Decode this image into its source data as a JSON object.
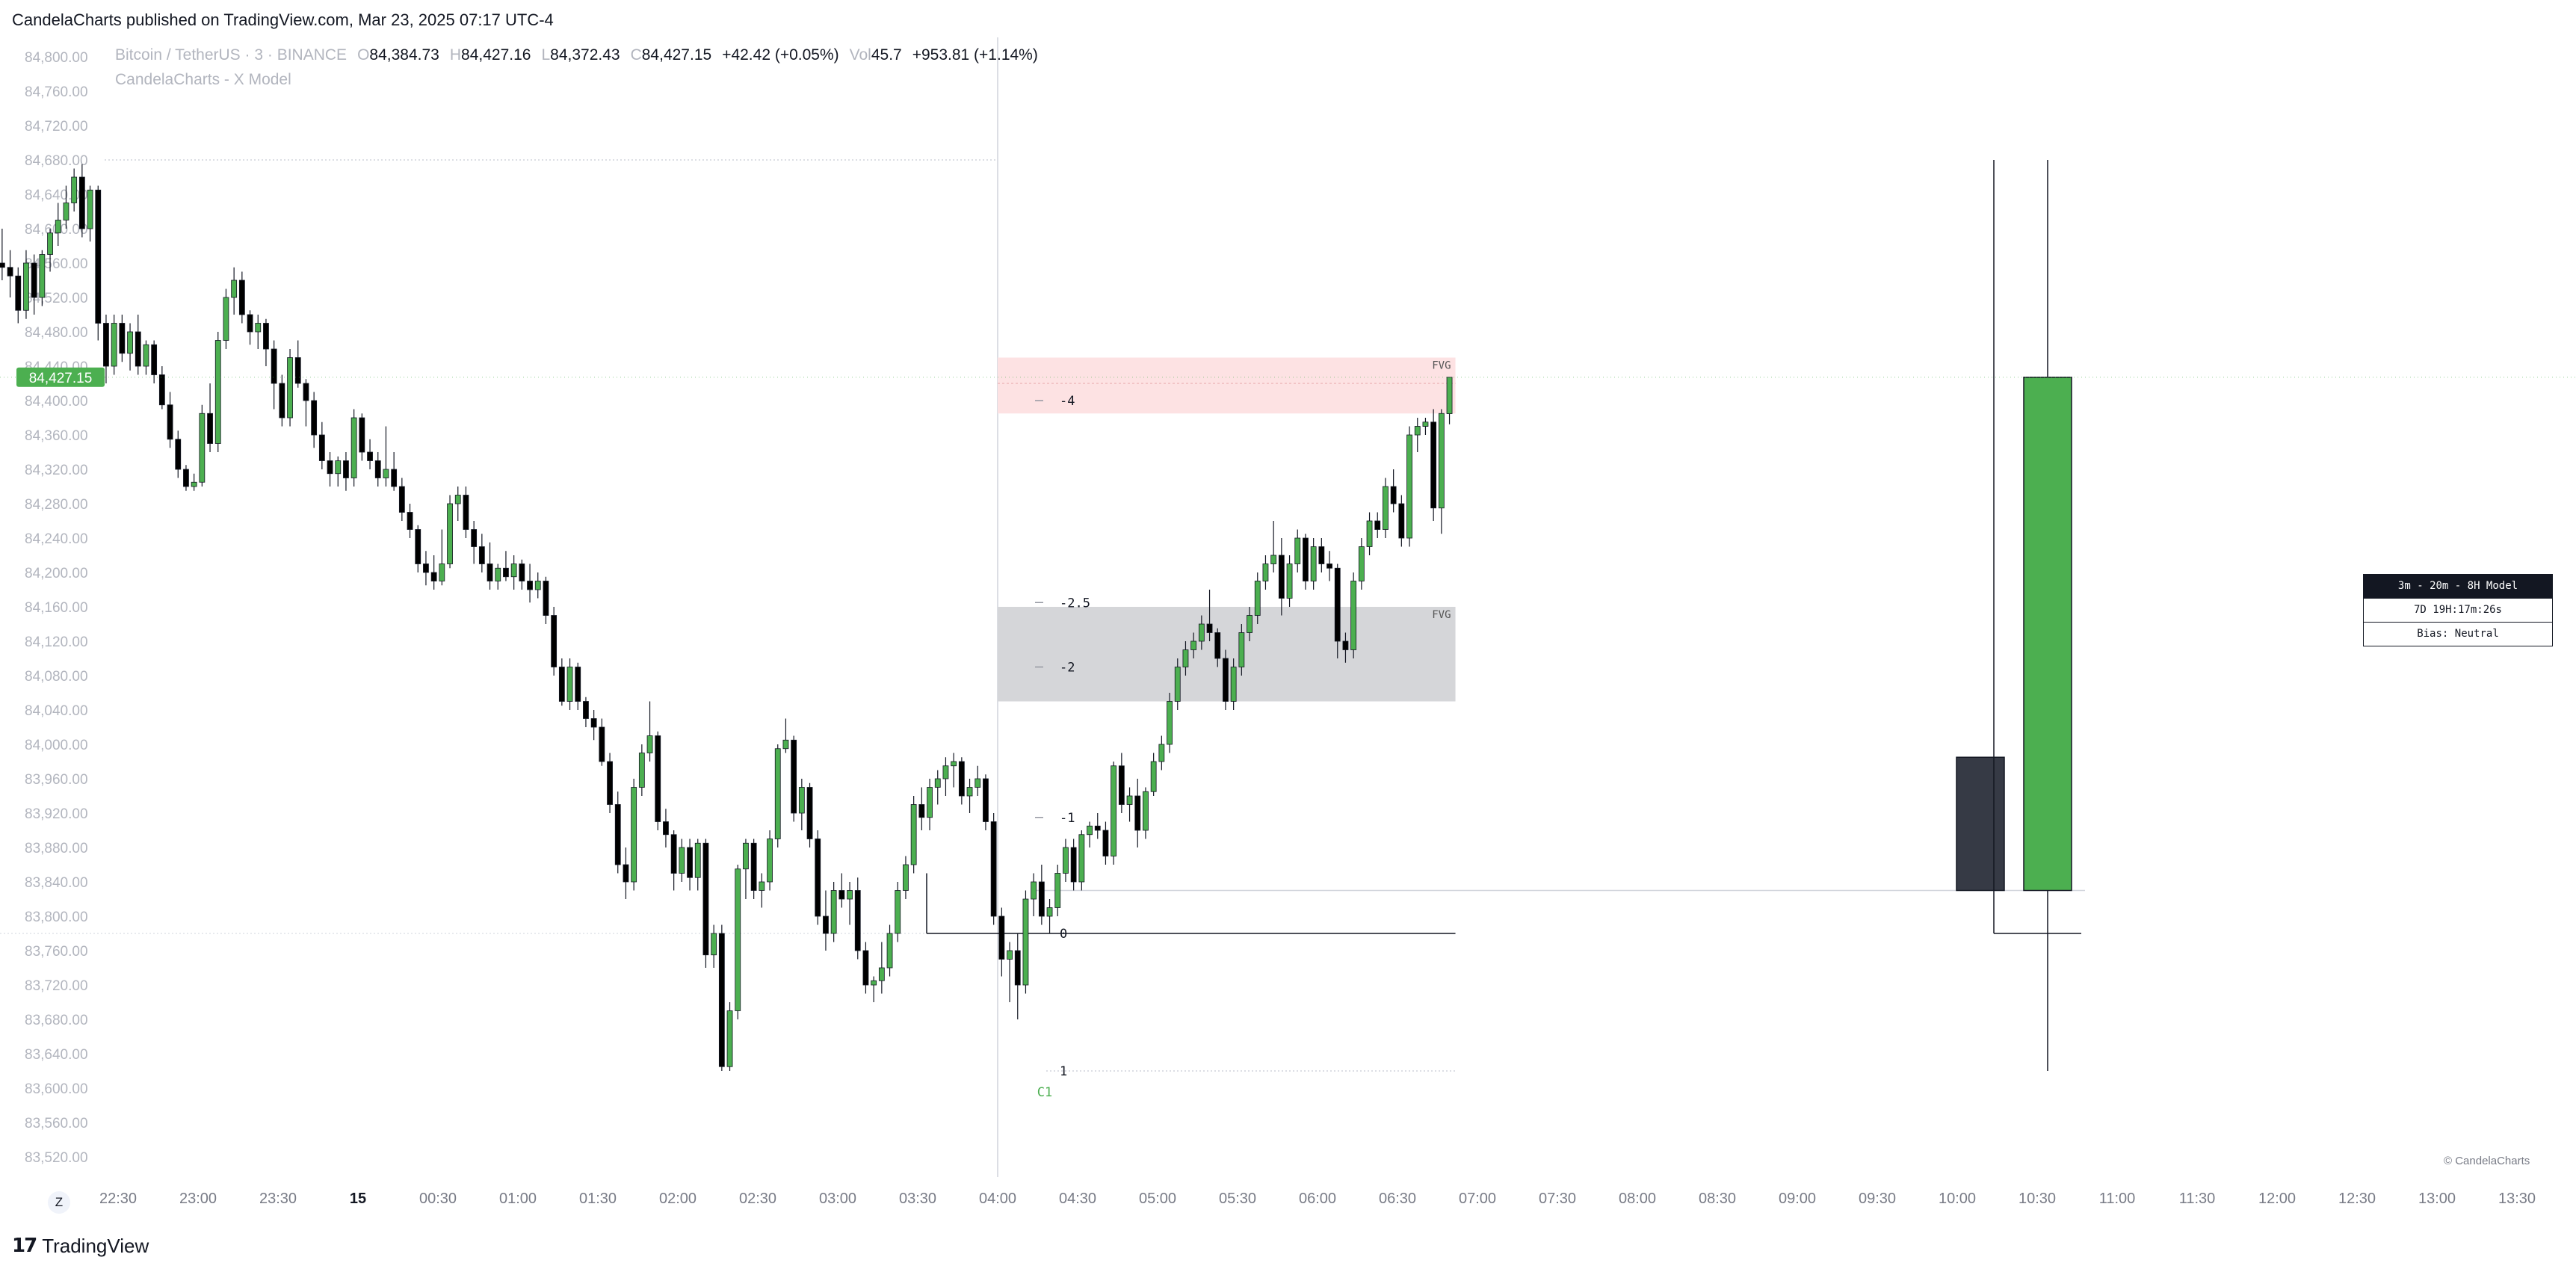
{
  "header": {
    "published": "CandelaCharts published on TradingView.com, Mar 23, 2025 07:17 UTC-4"
  },
  "legend": {
    "symbol": "Bitcoin / TetherUS · 3 · BINANCE",
    "o_label": "O",
    "o": "84,384.73",
    "h_label": "H",
    "h": "84,427.16",
    "l_label": "L",
    "l": "84,372.43",
    "c_label": "C",
    "c": "84,427.15",
    "change": "+42.42 (+0.05%)",
    "vol_label": "Vol",
    "vol": "45.7",
    "vol_change": "+953.81 (+1.14%)",
    "indicator": "CandelaCharts - X Model"
  },
  "footer": {
    "logo_text": "TradingView",
    "z_button": "Z",
    "copyright": "© CandelaCharts"
  },
  "model_box": {
    "title": "3m - 20m - 8H Model",
    "timer": "7D 19H:17m:26s",
    "bias": "Bias: Neutral"
  },
  "colors": {
    "up": "#4caf50",
    "down": "#000000",
    "fvg_red": "#fde2e3",
    "fvg_gray": "#d5d6d9",
    "price_tag": "#4caf50",
    "htf_dark": "#363a45"
  },
  "chart_data": {
    "type": "candlestick",
    "symbol": "BTCUSDT",
    "timeframe": "3",
    "ylim": [
      83500,
      84820
    ],
    "y_ticks": [
      "84,800.00",
      "84,760.00",
      "84,720.00",
      "84,680.00",
      "84,640.00",
      "84,600.00",
      "84,560.00",
      "84,520.00",
      "84,480.00",
      "84,440.00",
      "84,400.00",
      "84,360.00",
      "84,320.00",
      "84,280.00",
      "84,240.00",
      "84,200.00",
      "84,160.00",
      "84,120.00",
      "84,080.00",
      "84,040.00",
      "84,000.00",
      "83,960.00",
      "83,920.00",
      "83,880.00",
      "83,840.00",
      "83,800.00",
      "83,760.00",
      "83,720.00",
      "83,680.00",
      "83,640.00",
      "83,600.00",
      "83,560.00",
      "83,520.00"
    ],
    "x_ticks": [
      {
        "label": "22:30",
        "t": -30
      },
      {
        "label": "23:00",
        "t": 0
      },
      {
        "label": "23:30",
        "t": 30
      },
      {
        "label": "15",
        "t": 60
      },
      {
        "label": "00:30",
        "t": 90
      },
      {
        "label": "01:00",
        "t": 120
      },
      {
        "label": "01:30",
        "t": 150
      },
      {
        "label": "02:00",
        "t": 180
      },
      {
        "label": "02:30",
        "t": 210
      },
      {
        "label": "03:00",
        "t": 240
      },
      {
        "label": "03:30",
        "t": 270
      },
      {
        "label": "04:00",
        "t": 300
      },
      {
        "label": "04:30",
        "t": 330
      },
      {
        "label": "05:00",
        "t": 360
      },
      {
        "label": "05:30",
        "t": 390
      },
      {
        "label": "06:00",
        "t": 420
      },
      {
        "label": "06:30",
        "t": 450
      },
      {
        "label": "07:00",
        "t": 480
      },
      {
        "label": "07:30",
        "t": 510
      },
      {
        "label": "08:00",
        "t": 540
      },
      {
        "label": "08:30",
        "t": 570
      },
      {
        "label": "09:00",
        "t": 600
      },
      {
        "label": "09:30",
        "t": 630
      },
      {
        "label": "10:00",
        "t": 660
      },
      {
        "label": "10:30",
        "t": 690
      },
      {
        "label": "11:00",
        "t": 720
      },
      {
        "label": "11:30",
        "t": 750
      },
      {
        "label": "12:00",
        "t": 780
      },
      {
        "label": "12:30",
        "t": 810
      },
      {
        "label": "13:00",
        "t": 840
      },
      {
        "label": "13:30",
        "t": 870
      }
    ],
    "last_price": 84427.15,
    "last_price_label": "84,427.15",
    "candles": [
      [
        84245,
        84305,
        84225,
        84300
      ],
      [
        84300,
        84335,
        84270,
        84330
      ],
      [
        84330,
        84345,
        84290,
        84305
      ],
      [
        84305,
        84375,
        84300,
        84370
      ],
      [
        84370,
        84415,
        84360,
        84410
      ],
      [
        84410,
        84480,
        84400,
        84470
      ],
      [
        84470,
        84525,
        84450,
        84510
      ],
      [
        84510,
        84575,
        84490,
        84560
      ],
      [
        84560,
        84600,
        84540,
        84555
      ],
      [
        84555,
        84575,
        84520,
        84545
      ],
      [
        84545,
        84555,
        84490,
        84505
      ],
      [
        84505,
        84575,
        84495,
        84560
      ],
      [
        84560,
        84570,
        84500,
        84520
      ],
      [
        84520,
        84575,
        84510,
        84570
      ],
      [
        84570,
        84600,
        84550,
        84595
      ],
      [
        84595,
        84630,
        84580,
        84610
      ],
      [
        84610,
        84650,
        84600,
        84630
      ],
      [
        84630,
        84670,
        84620,
        84660
      ],
      [
        84660,
        84675,
        84590,
        84600
      ],
      [
        84600,
        84650,
        84585,
        84645
      ],
      [
        84645,
        84650,
        84470,
        84490
      ],
      [
        84490,
        84500,
        84420,
        84440
      ],
      [
        84440,
        84500,
        84430,
        84490
      ],
      [
        84490,
        84500,
        84445,
        84455
      ],
      [
        84455,
        84490,
        84435,
        84480
      ],
      [
        84480,
        84500,
        84430,
        84440
      ],
      [
        84440,
        84470,
        84430,
        84465
      ],
      [
        84465,
        84470,
        84420,
        84430
      ],
      [
        84430,
        84440,
        84390,
        84395
      ],
      [
        84395,
        84410,
        84345,
        84355
      ],
      [
        84355,
        84365,
        84310,
        84320
      ],
      [
        84320,
        84325,
        84295,
        84300
      ],
      [
        84300,
        84315,
        84295,
        84305
      ],
      [
        84305,
        84395,
        84300,
        84385
      ],
      [
        84385,
        84420,
        84340,
        84350
      ],
      [
        84350,
        84480,
        84340,
        84470
      ],
      [
        84470,
        84530,
        84460,
        84520
      ],
      [
        84520,
        84555,
        84500,
        84540
      ],
      [
        84540,
        84550,
        84490,
        84500
      ],
      [
        84500,
        84505,
        84465,
        84480
      ],
      [
        84480,
        84500,
        84460,
        84490
      ],
      [
        84490,
        84495,
        84440,
        84460
      ],
      [
        84460,
        84470,
        84390,
        84420
      ],
      [
        84420,
        84430,
        84370,
        84380
      ],
      [
        84380,
        84460,
        84370,
        84450
      ],
      [
        84450,
        84470,
        84415,
        84420
      ],
      [
        84420,
        84425,
        84370,
        84400
      ],
      [
        84400,
        84410,
        84345,
        84360
      ],
      [
        84360,
        84375,
        84320,
        84330
      ],
      [
        84330,
        84340,
        84300,
        84315
      ],
      [
        84315,
        84335,
        84300,
        84330
      ],
      [
        84330,
        84340,
        84295,
        84310
      ],
      [
        84310,
        84390,
        84300,
        84380
      ],
      [
        84380,
        84385,
        84330,
        84340
      ],
      [
        84340,
        84355,
        84320,
        84330
      ],
      [
        84330,
        84340,
        84300,
        84310
      ],
      [
        84310,
        84370,
        84300,
        84320
      ],
      [
        84320,
        84340,
        84295,
        84300
      ],
      [
        84300,
        84310,
        84260,
        84270
      ],
      [
        84270,
        84280,
        84240,
        84250
      ],
      [
        84250,
        84255,
        84200,
        84210
      ],
      [
        84210,
        84225,
        84185,
        84200
      ],
      [
        84200,
        84220,
        84180,
        84190
      ],
      [
        84190,
        84250,
        84185,
        84210
      ],
      [
        84210,
        84290,
        84205,
        84280
      ],
      [
        84280,
        84300,
        84260,
        84290
      ],
      [
        84290,
        84300,
        84240,
        84250
      ],
      [
        84250,
        84260,
        84210,
        84230
      ],
      [
        84230,
        84245,
        84200,
        84210
      ],
      [
        84210,
        84235,
        84180,
        84190
      ],
      [
        84190,
        84210,
        84180,
        84205
      ],
      [
        84205,
        84225,
        84190,
        84195
      ],
      [
        84195,
        84220,
        84180,
        84210
      ],
      [
        84210,
        84215,
        84180,
        84190
      ],
      [
        84190,
        84210,
        84165,
        84180
      ],
      [
        84180,
        84200,
        84170,
        84190
      ],
      [
        84190,
        84195,
        84140,
        84150
      ],
      [
        84150,
        84160,
        84080,
        84090
      ],
      [
        84090,
        84100,
        84045,
        84050
      ],
      [
        84050,
        84100,
        84040,
        84090
      ],
      [
        84090,
        84095,
        84040,
        84050
      ],
      [
        84050,
        84055,
        84020,
        84030
      ],
      [
        84030,
        84040,
        84005,
        84020
      ],
      [
        84020,
        84030,
        83975,
        83980
      ],
      [
        83980,
        83990,
        83920,
        83930
      ],
      [
        83930,
        83945,
        83850,
        83860
      ],
      [
        83860,
        83880,
        83820,
        83840
      ],
      [
        83840,
        83960,
        83830,
        83950
      ],
      [
        83950,
        84000,
        83940,
        83990
      ],
      [
        83990,
        84050,
        83980,
        84010
      ],
      [
        84010,
        84015,
        83900,
        83910
      ],
      [
        83910,
        83925,
        83880,
        83895
      ],
      [
        83895,
        83900,
        83830,
        83850
      ],
      [
        83850,
        83890,
        83840,
        83880
      ],
      [
        83880,
        83890,
        83830,
        83845
      ],
      [
        83845,
        83890,
        83830,
        83885
      ],
      [
        83885,
        83890,
        83740,
        83755
      ],
      [
        83755,
        83790,
        83740,
        83780
      ],
      [
        83780,
        83790,
        83620,
        83625
      ],
      [
        83625,
        83700,
        83620,
        83690
      ],
      [
        83690,
        83860,
        83680,
        83855
      ],
      [
        83855,
        83890,
        83820,
        83885
      ],
      [
        83885,
        83890,
        83820,
        83830
      ],
      [
        83830,
        83850,
        83810,
        83840
      ],
      [
        83840,
        83900,
        83830,
        83890
      ],
      [
        83890,
        84000,
        83880,
        83995
      ],
      [
        83995,
        84030,
        83990,
        84005
      ],
      [
        84005,
        84010,
        83910,
        83920
      ],
      [
        83920,
        83960,
        83900,
        83950
      ],
      [
        83950,
        83955,
        83880,
        83890
      ],
      [
        83890,
        83900,
        83790,
        83800
      ],
      [
        83800,
        83830,
        83760,
        83780
      ],
      [
        83780,
        83840,
        83770,
        83830
      ],
      [
        83830,
        83850,
        83810,
        83820
      ],
      [
        83820,
        83840,
        83790,
        83830
      ],
      [
        83830,
        83845,
        83750,
        83760
      ],
      [
        83760,
        83770,
        83710,
        83720
      ],
      [
        83720,
        83730,
        83700,
        83725
      ],
      [
        83725,
        83770,
        83710,
        83740
      ],
      [
        83740,
        83790,
        83730,
        83780
      ],
      [
        83780,
        83840,
        83770,
        83830
      ],
      [
        83830,
        83870,
        83820,
        83860
      ],
      [
        83860,
        83940,
        83850,
        83930
      ],
      [
        83930,
        83950,
        83900,
        83915
      ],
      [
        83915,
        83960,
        83900,
        83950
      ],
      [
        83950,
        83970,
        83930,
        83960
      ],
      [
        83960,
        83985,
        83940,
        83975
      ],
      [
        83975,
        83990,
        83950,
        83980
      ],
      [
        83980,
        83985,
        83930,
        83940
      ],
      [
        83940,
        83960,
        83920,
        83950
      ],
      [
        83950,
        83975,
        83940,
        83960
      ],
      [
        83960,
        83965,
        83900,
        83910
      ],
      [
        83910,
        83920,
        83790,
        83800
      ],
      [
        83800,
        83810,
        83730,
        83750
      ],
      [
        83750,
        83770,
        83700,
        83760
      ],
      [
        83760,
        83780,
        83680,
        83720
      ],
      [
        83720,
        83830,
        83710,
        83820
      ],
      [
        83820,
        83850,
        83800,
        83840
      ],
      [
        83840,
        83860,
        83790,
        83800
      ],
      [
        83800,
        83820,
        83780,
        83810
      ],
      [
        83810,
        83860,
        83800,
        83850
      ],
      [
        83850,
        83890,
        83840,
        83880
      ],
      [
        83880,
        83890,
        83830,
        83840
      ],
      [
        83840,
        83900,
        83830,
        83895
      ],
      [
        83895,
        83910,
        83880,
        83905
      ],
      [
        83905,
        83920,
        83890,
        83900
      ],
      [
        83900,
        83910,
        83860,
        83870
      ],
      [
        83870,
        83980,
        83860,
        83975
      ],
      [
        83975,
        83990,
        83920,
        83930
      ],
      [
        83930,
        83950,
        83910,
        83940
      ],
      [
        83940,
        83960,
        83880,
        83900
      ],
      [
        83900,
        83950,
        83890,
        83945
      ],
      [
        83945,
        83990,
        83940,
        83980
      ],
      [
        83980,
        84010,
        83970,
        84000
      ],
      [
        84000,
        84060,
        83990,
        84050
      ],
      [
        84050,
        84100,
        84040,
        84090
      ],
      [
        84090,
        84120,
        84080,
        84110
      ],
      [
        84110,
        84130,
        84100,
        84120
      ],
      [
        84120,
        84150,
        84110,
        84140
      ],
      [
        84140,
        84180,
        84120,
        84130
      ],
      [
        84130,
        84135,
        84090,
        84100
      ],
      [
        84100,
        84110,
        84040,
        84050
      ],
      [
        84050,
        84100,
        84040,
        84090
      ],
      [
        84090,
        84140,
        84080,
        84130
      ],
      [
        84130,
        84160,
        84120,
        84150
      ],
      [
        84150,
        84200,
        84140,
        84190
      ],
      [
        84190,
        84220,
        84180,
        84210
      ],
      [
        84210,
        84260,
        84200,
        84220
      ],
      [
        84220,
        84240,
        84150,
        84170
      ],
      [
        84170,
        84220,
        84160,
        84210
      ],
      [
        84210,
        84250,
        84200,
        84240
      ],
      [
        84240,
        84245,
        84180,
        84190
      ],
      [
        84190,
        84240,
        84180,
        84230
      ],
      [
        84230,
        84240,
        84200,
        84210
      ],
      [
        84210,
        84225,
        84190,
        84205
      ],
      [
        84205,
        84210,
        84100,
        84120
      ],
      [
        84120,
        84130,
        84095,
        84110
      ],
      [
        84110,
        84200,
        84100,
        84190
      ],
      [
        84190,
        84240,
        84180,
        84230
      ],
      [
        84230,
        84270,
        84220,
        84260
      ],
      [
        84260,
        84270,
        84240,
        84250
      ],
      [
        84250,
        84310,
        84240,
        84300
      ],
      [
        84300,
        84320,
        84270,
        84280
      ],
      [
        84280,
        84290,
        84230,
        84240
      ],
      [
        84240,
        84370,
        84230,
        84360
      ],
      [
        84360,
        84380,
        84340,
        84370
      ],
      [
        84370,
        84380,
        84360,
        84375
      ],
      [
        84375,
        84390,
        84260,
        84275
      ],
      [
        84275,
        84390,
        84245,
        84385
      ],
      [
        84384.73,
        84427.16,
        84372.43,
        84427.15
      ]
    ],
    "fvg_zones": [
      {
        "label": "FVG",
        "top": 84450,
        "bottom": 84385,
        "mid": 84420,
        "color": "red"
      },
      {
        "label": "FVG",
        "top": 84160,
        "bottom": 84050,
        "color": "gray"
      }
    ],
    "levels": [
      {
        "label": "1",
        "price": 83620
      },
      {
        "label": "0",
        "price": 83780
      },
      {
        "label": "-1",
        "price": 83915
      },
      {
        "label": "-2",
        "price": 84090
      },
      {
        "label": "-2.5",
        "price": 84165
      },
      {
        "label": "-4",
        "price": 84400
      }
    ],
    "range_high_price": 84680,
    "c1_label": "C1",
    "htf_candles": [
      {
        "open": 83985,
        "high": 83985,
        "low": 83830,
        "close": 83830,
        "color": "dark"
      },
      {
        "open": 83830,
        "high": 84680,
        "low": 83620,
        "close": 84427.15,
        "color": "green"
      }
    ]
  }
}
